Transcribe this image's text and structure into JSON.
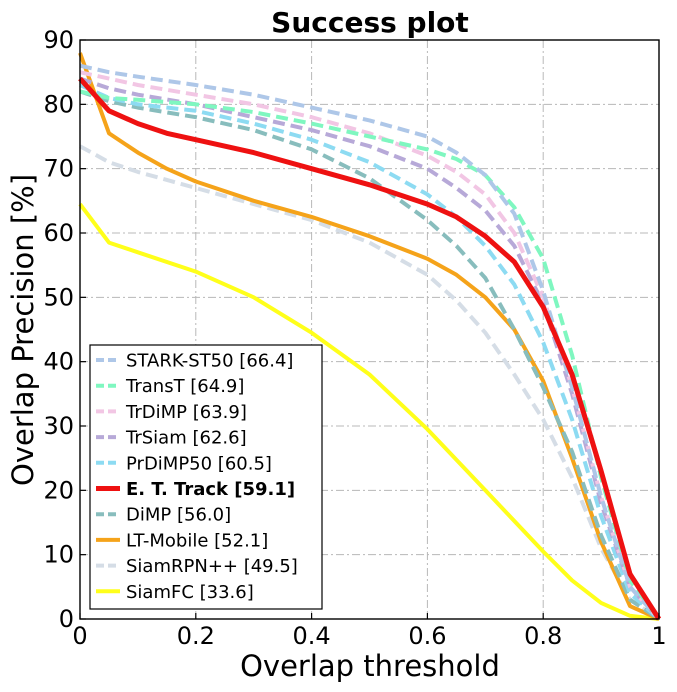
{
  "chart_data": {
    "type": "line",
    "title": "Success plot",
    "xlabel": "Overlap threshold",
    "ylabel": "Overlap Precision [%]",
    "xlim": [
      0,
      1
    ],
    "ylim": [
      0,
      90
    ],
    "xticks": [
      0,
      0.2,
      0.4,
      0.6,
      0.8,
      1
    ],
    "xtick_labels": [
      "0",
      "0.2",
      "0.4",
      "0.6",
      "0.8",
      "1"
    ],
    "yticks": [
      0,
      10,
      20,
      30,
      40,
      50,
      60,
      70,
      80,
      90
    ],
    "ytick_labels": [
      "0",
      "10",
      "20",
      "30",
      "40",
      "50",
      "60",
      "70",
      "80",
      "90"
    ],
    "grid": true,
    "legend_position": "lower-left",
    "series": [
      {
        "name": "STARK-ST50 [66.4]",
        "color": "#aec7e8",
        "style": "dashed",
        "bold": false,
        "x": [
          0,
          0.05,
          0.1,
          0.2,
          0.3,
          0.4,
          0.5,
          0.6,
          0.65,
          0.7,
          0.75,
          0.8,
          0.85,
          0.9,
          0.95,
          1
        ],
        "y": [
          86,
          85,
          84.3,
          83,
          81.5,
          79.5,
          77.5,
          75,
          72.5,
          69,
          63,
          51,
          36,
          19,
          5,
          0
        ]
      },
      {
        "name": "TransT [64.9]",
        "color": "#7ff7c0",
        "style": "dashed",
        "bold": false,
        "x": [
          0,
          0.05,
          0.1,
          0.2,
          0.3,
          0.4,
          0.5,
          0.6,
          0.65,
          0.7,
          0.75,
          0.8,
          0.85,
          0.9,
          0.95,
          1
        ],
        "y": [
          82,
          81,
          80.7,
          80,
          78.8,
          77,
          75,
          73,
          71.5,
          69,
          64,
          56,
          41,
          22,
          6,
          0
        ]
      },
      {
        "name": "TrDiMP [63.9]",
        "color": "#f2c6e4",
        "style": "dashed",
        "bold": false,
        "x": [
          0,
          0.05,
          0.1,
          0.2,
          0.3,
          0.4,
          0.5,
          0.6,
          0.65,
          0.7,
          0.75,
          0.8,
          0.85,
          0.9,
          0.95,
          1
        ],
        "y": [
          85,
          84,
          83,
          81.5,
          80,
          78,
          75.5,
          72,
          69.5,
          66,
          60,
          50,
          36,
          19,
          5,
          0
        ]
      },
      {
        "name": "TrSiam [62.6]",
        "color": "#b7a9d8",
        "style": "dashed",
        "bold": false,
        "x": [
          0,
          0.05,
          0.1,
          0.2,
          0.3,
          0.4,
          0.5,
          0.6,
          0.65,
          0.7,
          0.75,
          0.8,
          0.85,
          0.9,
          0.95,
          1
        ],
        "y": [
          84,
          82.5,
          81.5,
          80,
          78,
          76,
          73.5,
          70,
          67,
          63.5,
          58,
          49,
          35,
          18,
          5,
          0
        ]
      },
      {
        "name": "PrDiMP50 [60.5]",
        "color": "#8ddbf2",
        "style": "dashed",
        "bold": false,
        "x": [
          0,
          0.05,
          0.1,
          0.2,
          0.3,
          0.4,
          0.5,
          0.6,
          0.65,
          0.7,
          0.75,
          0.8,
          0.85,
          0.9,
          0.95,
          1
        ],
        "y": [
          83,
          81,
          80,
          79,
          77,
          74.5,
          71,
          66,
          62.5,
          58,
          52,
          43,
          31,
          16,
          4,
          0
        ]
      },
      {
        "name": "E. T. Track [59.1]",
        "color": "#ee1111",
        "style": "solid",
        "bold": true,
        "x": [
          0,
          0.05,
          0.1,
          0.15,
          0.2,
          0.3,
          0.4,
          0.5,
          0.6,
          0.65,
          0.7,
          0.75,
          0.8,
          0.85,
          0.9,
          0.95,
          1
        ],
        "y": [
          84,
          79,
          77,
          75.5,
          74.5,
          72.5,
          70,
          67.5,
          64.5,
          62.5,
          59.5,
          55.5,
          48.5,
          38,
          23,
          7,
          0
        ]
      },
      {
        "name": "DiMP [56.0]",
        "color": "#88bdbd",
        "style": "dashed",
        "bold": false,
        "x": [
          0,
          0.05,
          0.1,
          0.2,
          0.3,
          0.4,
          0.5,
          0.6,
          0.65,
          0.7,
          0.75,
          0.8,
          0.85,
          0.9,
          0.95,
          1
        ],
        "y": [
          82,
          80.5,
          79.5,
          78,
          76,
          73,
          68.5,
          62,
          58,
          53,
          45,
          36,
          26,
          13,
          3,
          0
        ]
      },
      {
        "name": "LT-Mobile [52.1]",
        "color": "#f5a31a",
        "style": "solid",
        "bold": false,
        "x": [
          0,
          0.05,
          0.1,
          0.15,
          0.2,
          0.3,
          0.4,
          0.5,
          0.6,
          0.65,
          0.7,
          0.75,
          0.8,
          0.85,
          0.9,
          0.95,
          1
        ],
        "y": [
          88,
          75.5,
          72.5,
          70,
          68,
          65,
          62.5,
          59.5,
          56,
          53.5,
          50,
          45,
          37,
          25,
          12,
          2,
          0
        ]
      },
      {
        "name": "SiamRPN++ [49.5]",
        "color": "#d5dde6",
        "style": "dashed",
        "bold": false,
        "x": [
          0,
          0.05,
          0.1,
          0.2,
          0.3,
          0.4,
          0.5,
          0.6,
          0.65,
          0.7,
          0.75,
          0.8,
          0.85,
          0.9,
          0.95,
          1
        ],
        "y": [
          73.5,
          71,
          69.5,
          67,
          64.5,
          62,
          58.5,
          53.5,
          49.5,
          44.5,
          38,
          31,
          22,
          11,
          3,
          0
        ]
      },
      {
        "name": "SiamFC [33.6]",
        "color": "#ffff1a",
        "style": "solid",
        "bold": false,
        "x": [
          0,
          0.05,
          0.1,
          0.2,
          0.3,
          0.4,
          0.5,
          0.6,
          0.7,
          0.8,
          0.85,
          0.9,
          0.95,
          1
        ],
        "y": [
          64.5,
          58.5,
          57,
          54,
          50,
          44.5,
          38,
          29.5,
          20,
          10.5,
          6,
          2.5,
          0.5,
          0
        ]
      }
    ]
  }
}
